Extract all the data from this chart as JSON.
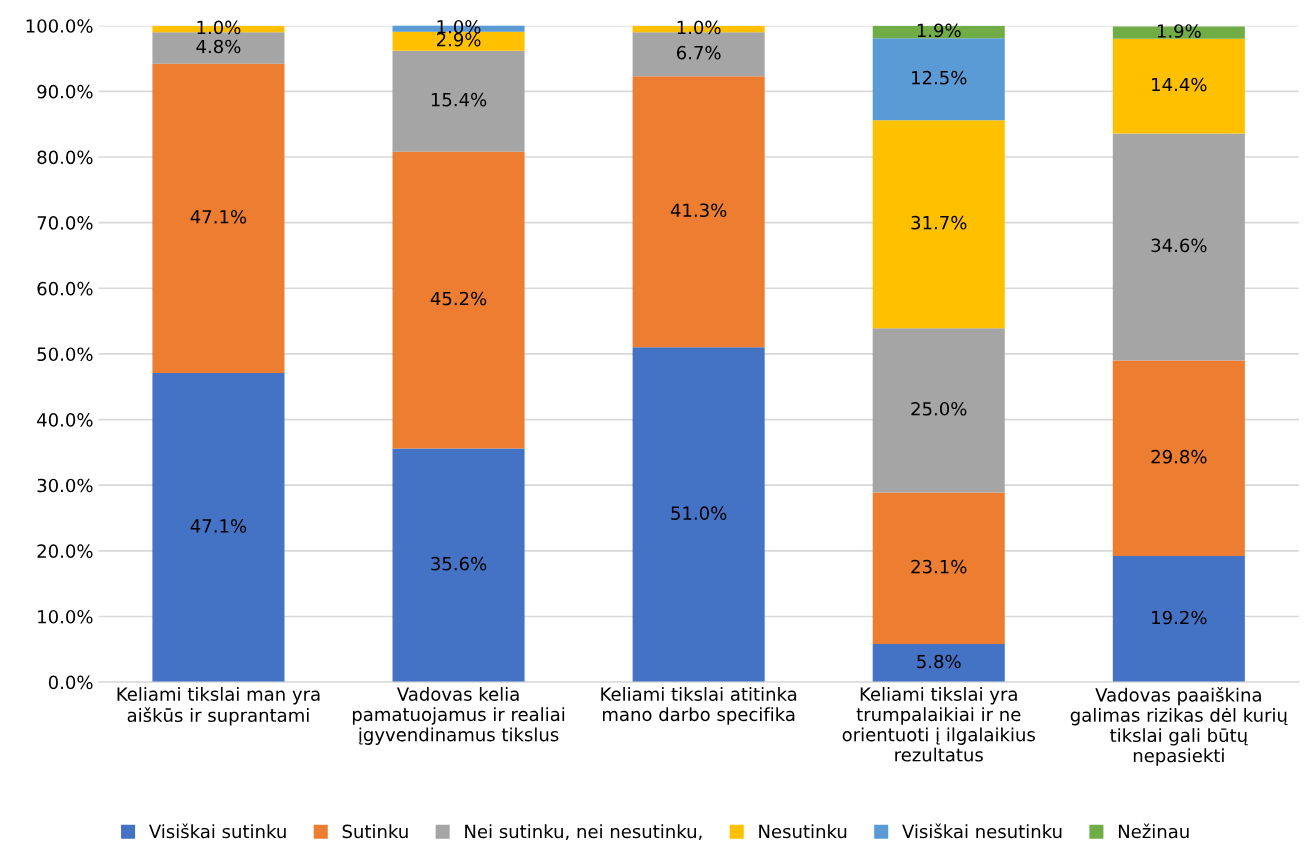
{
  "chart_data": {
    "type": "bar",
    "stacked": true,
    "categories": [
      "Keliami tikslai man yra\naiškūs ir suprantami",
      "Vadovas kelia\npamatuojamus ir realiai\nįgyvendinamus tikslus",
      "Keliami tikslai atitinka\nmano darbo specifika",
      "Keliami tikslai yra\ntrumpalaikiai ir ne\norientuoti į ilgalaikius\nrezultatus",
      "Vadovas paaiškina\ngalimas rizikas dėl kurių\ntikslai gali būtų\nnepasiekti"
    ],
    "series": [
      {
        "name": "Visiškai sutinku",
        "color": "#4472c4",
        "values": [
          47.1,
          35.6,
          51.0,
          5.8,
          19.2
        ],
        "value_labels": [
          "47.1%",
          "35.6%",
          "51.0%",
          "5.8%",
          "19.2%"
        ]
      },
      {
        "name": "Sutinku",
        "color": "#ed7d31",
        "values": [
          47.1,
          45.2,
          41.3,
          23.1,
          29.8
        ],
        "value_labels": [
          "47.1%",
          "45.2%",
          "41.3%",
          "23.1%",
          "29.8%"
        ]
      },
      {
        "name": "Nei sutinku, nei nesutinku,",
        "color": "#a5a5a5",
        "values": [
          4.8,
          15.4,
          6.7,
          25.0,
          34.6
        ],
        "value_labels": [
          "4.8%",
          "15.4%",
          "6.7%",
          "25.0%",
          "34.6%"
        ]
      },
      {
        "name": "Nesutinku",
        "color": "#ffc000",
        "values": [
          1.0,
          2.9,
          1.0,
          31.7,
          14.4
        ],
        "value_labels": [
          "1.0%",
          "2.9%",
          "1.0%",
          "31.7%",
          "14.4%"
        ]
      },
      {
        "name": "Visiškai nesutinku",
        "color": "#5b9bd5",
        "values": [
          null,
          1.0,
          null,
          12.5,
          null
        ],
        "value_labels": [
          null,
          "1.0%",
          null,
          "12.5%",
          null
        ]
      },
      {
        "name": "Nežinau",
        "color": "#70ad47",
        "values": [
          null,
          null,
          null,
          1.9,
          1.9
        ],
        "value_labels": [
          null,
          null,
          null,
          "1.9%",
          "1.9%"
        ]
      }
    ],
    "ylim": [
      0,
      100
    ],
    "yticks": [
      {
        "value": 0,
        "label": "0.0%"
      },
      {
        "value": 10,
        "label": "10.0%"
      },
      {
        "value": 20,
        "label": "20.0%"
      },
      {
        "value": 30,
        "label": "30.0%"
      },
      {
        "value": 40,
        "label": "40.0%"
      },
      {
        "value": 50,
        "label": "50.0%"
      },
      {
        "value": 60,
        "label": "60.0%"
      },
      {
        "value": 70,
        "label": "70.0%"
      },
      {
        "value": 80,
        "label": "80.0%"
      },
      {
        "value": 90,
        "label": "90.0%"
      },
      {
        "value": 100,
        "label": "100.0%"
      }
    ],
    "grid": "y",
    "legend": "bottom"
  }
}
